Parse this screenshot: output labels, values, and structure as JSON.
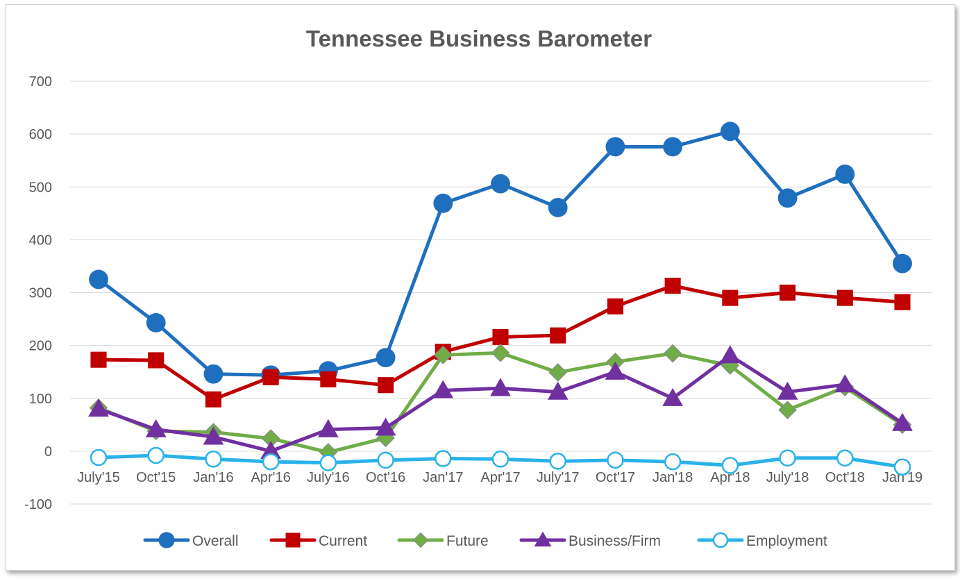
{
  "chart_data": {
    "type": "line",
    "title": "Tennessee Business Barometer",
    "xlabel": "",
    "ylabel": "",
    "ylim": [
      -100,
      700
    ],
    "yticks": [
      -100,
      0,
      100,
      200,
      300,
      400,
      500,
      600,
      700
    ],
    "grid": true,
    "legend_position": "bottom",
    "categories": [
      "July'15",
      "Oct'15",
      "Jan'16",
      "Apr'16",
      "July'16",
      "Oct'16",
      "Jan'17",
      "Apr'17",
      "July'17",
      "Oct'17",
      "Jan'18",
      "Apr'18",
      "July'18",
      "Oct'18",
      "Jan'19"
    ],
    "series": [
      {
        "name": "Overall",
        "color": "#1f6fbf",
        "marker": "circle",
        "values": [
          325,
          243,
          146,
          144,
          152,
          177,
          469,
          506,
          461,
          576,
          576,
          605,
          479,
          524,
          355
        ]
      },
      {
        "name": "Current",
        "color": "#c00000",
        "marker": "square",
        "values": [
          173,
          172,
          98,
          140,
          136,
          125,
          188,
          216,
          219,
          274,
          313,
          290,
          300,
          290,
          282
        ]
      },
      {
        "name": "Future",
        "color": "#70ad47",
        "marker": "diamond",
        "values": [
          82,
          38,
          36,
          24,
          -2,
          25,
          182,
          186,
          149,
          169,
          185,
          162,
          78,
          121,
          50
        ]
      },
      {
        "name": "Business/Firm",
        "color": "#7030a0",
        "marker": "triangle",
        "values": [
          80,
          41,
          27,
          0,
          41,
          44,
          115,
          119,
          112,
          150,
          100,
          181,
          112,
          126,
          53
        ]
      },
      {
        "name": "Employment",
        "color": "#29b2ea",
        "marker": "open-circle",
        "values": [
          -12,
          -8,
          -15,
          -20,
          -22,
          -17,
          -14,
          -15,
          -19,
          -17,
          -20,
          -27,
          -13,
          -13,
          -30
        ]
      }
    ]
  }
}
